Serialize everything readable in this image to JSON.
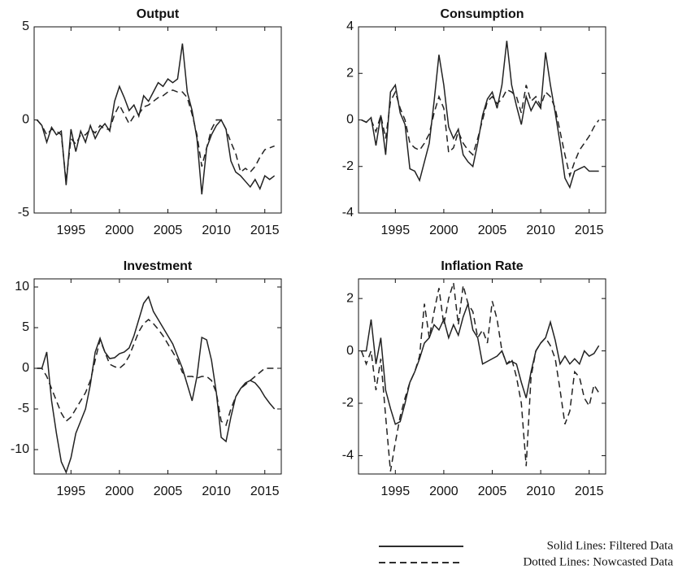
{
  "chart_data": [
    {
      "type": "line",
      "title": "Output",
      "x": [
        1991.5,
        1992,
        1992.5,
        1993,
        1993.5,
        1994,
        1994.5,
        1995,
        1995.5,
        1996,
        1996.5,
        1997,
        1997.5,
        1998,
        1998.5,
        1999,
        1999.5,
        2000,
        2000.5,
        2001,
        2001.5,
        2002,
        2002.5,
        2003,
        2003.5,
        2004,
        2004.5,
        2005,
        2005.5,
        2006,
        2006.5,
        2007,
        2007.5,
        2008,
        2008.5,
        2009,
        2009.5,
        2010,
        2010.5,
        2011,
        2011.5,
        2012,
        2012.5,
        2013,
        2013.5,
        2014,
        2014.5,
        2015,
        2015.5,
        2016
      ],
      "series": [
        {
          "style": "solid",
          "color": "#222222",
          "values": [
            0,
            -0.3,
            -1.2,
            -0.4,
            -0.8,
            -0.6,
            -3.5,
            -0.5,
            -1.7,
            -0.6,
            -1.2,
            -0.3,
            -1.0,
            -0.5,
            -0.2,
            -0.6,
            1.0,
            1.8,
            1.2,
            0.5,
            0.8,
            0.2,
            1.3,
            1.0,
            1.5,
            2.0,
            1.8,
            2.2,
            2.0,
            2.2,
            4.1,
            1.5,
            0.5,
            -1.0,
            -4.0,
            -1.5,
            -0.8,
            -0.3,
            0.0,
            -0.5,
            -2.2,
            -2.8,
            -3.0,
            -3.3,
            -3.6,
            -3.2,
            -3.7,
            -3.0,
            -3.2,
            -3.0
          ]
        },
        {
          "style": "dashed",
          "color": "#222222",
          "values": [
            0,
            -0.3,
            -0.8,
            -0.5,
            -0.6,
            -0.8,
            -3.3,
            -1.0,
            -1.3,
            -0.8,
            -0.8,
            -0.5,
            -0.7,
            -0.3,
            -0.5,
            -0.5,
            0.3,
            0.8,
            0.3,
            -0.2,
            0.2,
            0.3,
            0.7,
            0.8,
            1.0,
            1.2,
            1.3,
            1.5,
            1.6,
            1.5,
            1.5,
            1.2,
            0.3,
            -0.8,
            -2.5,
            -1.5,
            -0.5,
            0,
            0,
            -0.5,
            -1.2,
            -1.8,
            -2.8,
            -2.6,
            -2.8,
            -2.5,
            -2.0,
            -1.6,
            -1.5,
            -1.4
          ]
        }
      ],
      "xlim": [
        1991.2,
        2016.7
      ],
      "xticks": [
        1995,
        2000,
        2005,
        2010,
        2015
      ],
      "ylim": [
        -5,
        5
      ],
      "yticks": [
        -5,
        0,
        5
      ]
    },
    {
      "type": "line",
      "title": "Consumption",
      "x": [
        1991.5,
        1992,
        1992.5,
        1993,
        1993.5,
        1994,
        1994.5,
        1995,
        1995.5,
        1996,
        1996.5,
        1997,
        1997.5,
        1998,
        1998.5,
        1999,
        1999.5,
        2000,
        2000.5,
        2001,
        2001.5,
        2002,
        2002.5,
        2003,
        2003.5,
        2004,
        2004.5,
        2005,
        2005.5,
        2006,
        2006.5,
        2007,
        2007.5,
        2008,
        2008.5,
        2009,
        2009.5,
        2010,
        2010.5,
        2011,
        2011.5,
        2012,
        2012.5,
        2013,
        2013.5,
        2014,
        2014.5,
        2015,
        2015.5,
        2016
      ],
      "series": [
        {
          "style": "solid",
          "color": "#222222",
          "values": [
            0,
            -0.1,
            0.1,
            -1.1,
            0.2,
            -1.5,
            1.2,
            1.5,
            0.3,
            -0.2,
            -2.1,
            -2.2,
            -2.6,
            -1.8,
            -1.0,
            0.8,
            2.8,
            1.5,
            -0.3,
            -0.8,
            -0.4,
            -1.5,
            -1.8,
            -2.0,
            -1.0,
            0.2,
            0.9,
            1.2,
            0.5,
            1.5,
            3.4,
            1.5,
            0.6,
            -0.2,
            1.0,
            0.4,
            0.8,
            0.5,
            2.9,
            1.5,
            0.3,
            -1.0,
            -2.5,
            -2.9,
            -2.2,
            -2.1,
            -2.0,
            -2.2,
            -2.2,
            -2.2
          ]
        },
        {
          "style": "dashed",
          "color": "#222222",
          "values": [
            0,
            -0.1,
            0,
            -0.5,
            0.2,
            -0.8,
            0.8,
            1.2,
            0.5,
            0,
            -1.0,
            -1.2,
            -1.3,
            -1.0,
            -0.6,
            0.3,
            1.0,
            0.5,
            -1.4,
            -1.2,
            -0.5,
            -1.0,
            -1.3,
            -1.5,
            -0.8,
            0,
            0.8,
            1.0,
            0.7,
            0.9,
            1.3,
            1.2,
            1.0,
            0.3,
            1.5,
            0.8,
            1.0,
            0.6,
            1.2,
            1.0,
            0.5,
            -0.5,
            -1.5,
            -2.4,
            -1.8,
            -1.3,
            -1.0,
            -0.7,
            -0.3,
            0
          ]
        }
      ],
      "xlim": [
        1991.2,
        2016.7
      ],
      "xticks": [
        1995,
        2000,
        2005,
        2010,
        2015
      ],
      "ylim": [
        -4,
        4
      ],
      "yticks": [
        -4,
        -2,
        0,
        2,
        4
      ]
    },
    {
      "type": "line",
      "title": "Investment",
      "x": [
        1991.5,
        1992,
        1992.5,
        1993,
        1993.5,
        1994,
        1994.5,
        1995,
        1995.5,
        1996,
        1996.5,
        1997,
        1997.5,
        1998,
        1998.5,
        1999,
        1999.5,
        2000,
        2000.5,
        2001,
        2001.5,
        2002,
        2002.5,
        2003,
        2003.5,
        2004,
        2004.5,
        2005,
        2005.5,
        2006,
        2006.5,
        2007,
        2007.5,
        2008,
        2008.5,
        2009,
        2009.5,
        2010,
        2010.5,
        2011,
        2011.5,
        2012,
        2012.5,
        2013,
        2013.5,
        2014,
        2014.5,
        2015,
        2015.5,
        2016
      ],
      "series": [
        {
          "style": "solid",
          "color": "#222222",
          "values": [
            0,
            0,
            2,
            -4,
            -8,
            -11.5,
            -12.8,
            -11,
            -8,
            -6.5,
            -5,
            -2,
            2,
            3.7,
            2,
            1.2,
            1.3,
            1.8,
            2,
            2.5,
            4,
            6,
            8,
            8.8,
            7,
            6,
            5,
            4,
            3,
            1.5,
            0,
            -2,
            -4,
            -1,
            3.8,
            3.5,
            1,
            -3,
            -8.5,
            -9,
            -6,
            -3.5,
            -2.5,
            -1.8,
            -1.5,
            -1.8,
            -2.5,
            -3.5,
            -4.3,
            -5
          ]
        },
        {
          "style": "dashed",
          "color": "#222222",
          "values": [
            0,
            0,
            -1,
            -2.5,
            -4,
            -5.5,
            -6.5,
            -6,
            -5,
            -4,
            -3,
            -1.5,
            1,
            3.5,
            2,
            0.5,
            0.2,
            0,
            0.5,
            1.5,
            3,
            4.5,
            5.5,
            6,
            5.5,
            4.8,
            4,
            3,
            2,
            1,
            -0.5,
            -1,
            -1,
            -1.2,
            -1,
            -1,
            -1.5,
            -3,
            -6.5,
            -7,
            -5,
            -3.5,
            -2.5,
            -2,
            -1.5,
            -1,
            -0.5,
            0,
            0,
            0
          ]
        }
      ],
      "xlim": [
        1991.2,
        2016.7
      ],
      "xticks": [
        1995,
        2000,
        2005,
        2010,
        2015
      ],
      "ylim": [
        -13,
        11
      ],
      "yticks": [
        -10,
        -5,
        0,
        5,
        10
      ]
    },
    {
      "type": "line",
      "title": "Inflation Rate",
      "x": [
        1991.5,
        1992,
        1992.5,
        1993,
        1993.5,
        1994,
        1994.5,
        1995,
        1995.5,
        1996,
        1996.5,
        1997,
        1997.5,
        1998,
        1998.5,
        1999,
        1999.5,
        2000,
        2000.5,
        2001,
        2001.5,
        2002,
        2002.5,
        2003,
        2003.5,
        2004,
        2004.5,
        2005,
        2005.5,
        2006,
        2006.5,
        2007,
        2007.5,
        2008,
        2008.5,
        2009,
        2009.5,
        2010,
        2010.5,
        2011,
        2011.5,
        2012,
        2012.5,
        2013,
        2013.5,
        2014,
        2014.5,
        2015,
        2015.5,
        2016
      ],
      "series": [
        {
          "style": "solid",
          "color": "#222222",
          "values": [
            0,
            0,
            1.2,
            -0.5,
            0.5,
            -1.5,
            -2.2,
            -2.8,
            -2.7,
            -2,
            -1.2,
            -0.8,
            -0.3,
            0.3,
            0.5,
            1,
            0.8,
            1.2,
            0.5,
            1,
            0.6,
            1.3,
            1.8,
            0.8,
            0.5,
            -0.5,
            -0.4,
            -0.3,
            -0.2,
            0,
            -0.5,
            -0.4,
            -0.5,
            -1.2,
            -1.8,
            -0.8,
            0,
            0.3,
            0.5,
            1.1,
            0.4,
            -0.5,
            -0.2,
            -0.5,
            -0.3,
            -0.5,
            0,
            -0.2,
            -0.1,
            0.2
          ]
        },
        {
          "style": "dashed",
          "color": "#222222",
          "values": [
            0,
            -0.5,
            0,
            -1.5,
            -0.3,
            -2.5,
            -4.6,
            -3.5,
            -2.5,
            -1.8,
            -1.2,
            -0.8,
            -0.2,
            1.8,
            0.5,
            1.5,
            2.4,
            1,
            2,
            2.6,
            1,
            2.5,
            1.8,
            1.5,
            0.5,
            0.8,
            0.3,
            1.9,
            1.2,
            0,
            -0.5,
            -0.3,
            -1,
            -2,
            -4.4,
            -1,
            0,
            0.3,
            0.5,
            0.2,
            -0.3,
            -1.5,
            -2.8,
            -2.3,
            -0.8,
            -1,
            -1.8,
            -2.1,
            -1.3,
            -1.6
          ]
        }
      ],
      "xlim": [
        1991.2,
        2016.7
      ],
      "xticks": [
        1995,
        2000,
        2005,
        2010,
        2015
      ],
      "ylim": [
        -4.7,
        2.75
      ],
      "yticks": [
        -4,
        -2,
        0,
        2
      ]
    }
  ],
  "legend": [
    {
      "style": "solid",
      "label": "Solid Lines: Filtered Data"
    },
    {
      "style": "dashed",
      "label": "Dotted Lines: Nowcasted Data"
    }
  ]
}
